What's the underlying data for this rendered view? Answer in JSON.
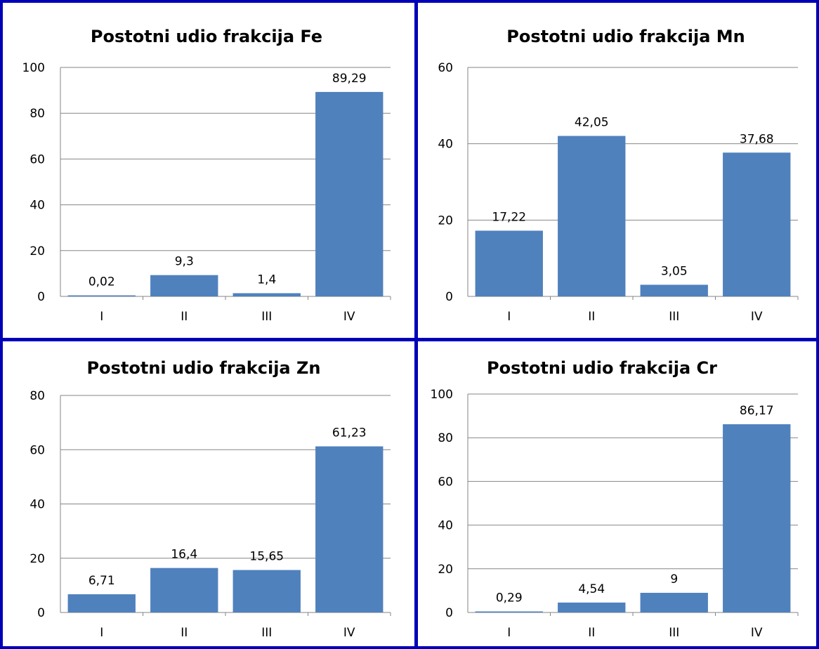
{
  "colors": {
    "bar": "#4f81bd",
    "frame": "#0000b8",
    "grid": "#868686"
  },
  "chart_data": [
    {
      "type": "bar",
      "title": "Postotni udio frakcija  Fe",
      "categories": [
        "I",
        "II",
        "III",
        "IV"
      ],
      "values": [
        0.02,
        9.3,
        1.4,
        89.29
      ],
      "value_labels": [
        "0,02",
        "9,3",
        "1,4",
        "89,29"
      ],
      "ylim": [
        0,
        100
      ],
      "yticks": [
        0,
        20,
        40,
        60,
        80,
        100
      ],
      "grid": true,
      "legend": "none"
    },
    {
      "type": "bar",
      "title": "Postotni udio frakcija  Mn",
      "categories": [
        "I",
        "II",
        "III",
        "IV"
      ],
      "values": [
        17.22,
        42.05,
        3.05,
        37.68
      ],
      "value_labels": [
        "17,22",
        "42,05",
        "3,05",
        "37,68"
      ],
      "ylim": [
        0,
        60
      ],
      "yticks": [
        0,
        20,
        40,
        60
      ],
      "grid": true,
      "legend": "none"
    },
    {
      "type": "bar",
      "title": "Postotni udio frakcija  Zn",
      "categories": [
        "I",
        "II",
        "III",
        "IV"
      ],
      "values": [
        6.71,
        16.4,
        15.65,
        61.23
      ],
      "value_labels": [
        "6,71",
        "16,4",
        "15,65",
        "61,23"
      ],
      "ylim": [
        0,
        80
      ],
      "yticks": [
        0,
        20,
        40,
        60,
        80
      ],
      "grid": true,
      "legend": "none"
    },
    {
      "type": "bar",
      "title": "Postotni udio frakcija  Cr",
      "categories": [
        "I",
        "II",
        "III",
        "IV"
      ],
      "values": [
        0.29,
        4.54,
        9,
        86.17
      ],
      "value_labels": [
        "0,29",
        "4,54",
        "9",
        "86,17"
      ],
      "ylim": [
        0,
        100
      ],
      "yticks": [
        0,
        20,
        40,
        60,
        80,
        100
      ],
      "grid": true,
      "legend": "none"
    }
  ]
}
